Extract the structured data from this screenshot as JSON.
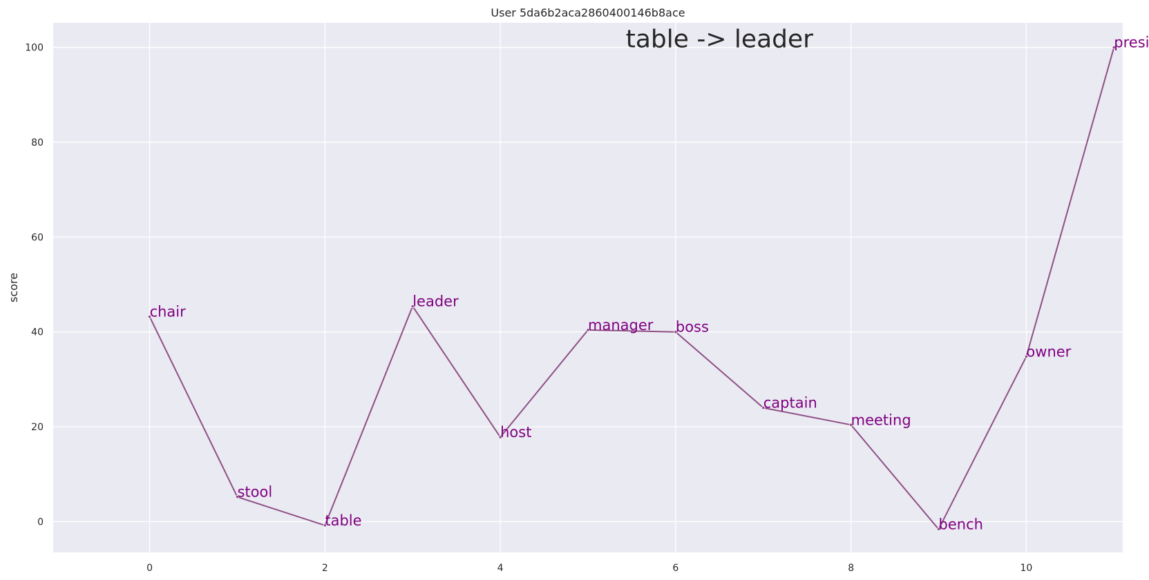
{
  "chart_data": {
    "type": "line",
    "title": "User 5da6b2aca2860400146b8ace",
    "annotation": "table -> leader",
    "xlabel": "",
    "ylabel": "score",
    "xlim": [
      -1.1,
      11.1
    ],
    "ylim": [
      -6.5,
      105.2
    ],
    "xticks": [
      0,
      2,
      4,
      6,
      8,
      10
    ],
    "yticks": [
      0,
      20,
      40,
      60,
      80,
      100
    ],
    "grid": true,
    "colors": {
      "background": "#eaeaf2",
      "grid": "#ffffff",
      "line": "#8e4f85",
      "label": "#800080",
      "text": "#262626"
    },
    "points": [
      {
        "x": 0,
        "y": 43.2,
        "label": "chair"
      },
      {
        "x": 1,
        "y": 5.2,
        "label": "stool"
      },
      {
        "x": 2,
        "y": -0.8,
        "label": "table"
      },
      {
        "x": 3,
        "y": 45.4,
        "label": "leader"
      },
      {
        "x": 4,
        "y": 17.8,
        "label": "host"
      },
      {
        "x": 5,
        "y": 40.4,
        "label": "manager"
      },
      {
        "x": 6,
        "y": 40.0,
        "label": "boss"
      },
      {
        "x": 7,
        "y": 24.0,
        "label": "captain"
      },
      {
        "x": 8,
        "y": 20.4,
        "label": "meeting"
      },
      {
        "x": 9,
        "y": -1.6,
        "label": "bench"
      },
      {
        "x": 10,
        "y": 34.8,
        "label": "owner"
      },
      {
        "x": 11,
        "y": 100.0,
        "label": "president"
      }
    ]
  }
}
